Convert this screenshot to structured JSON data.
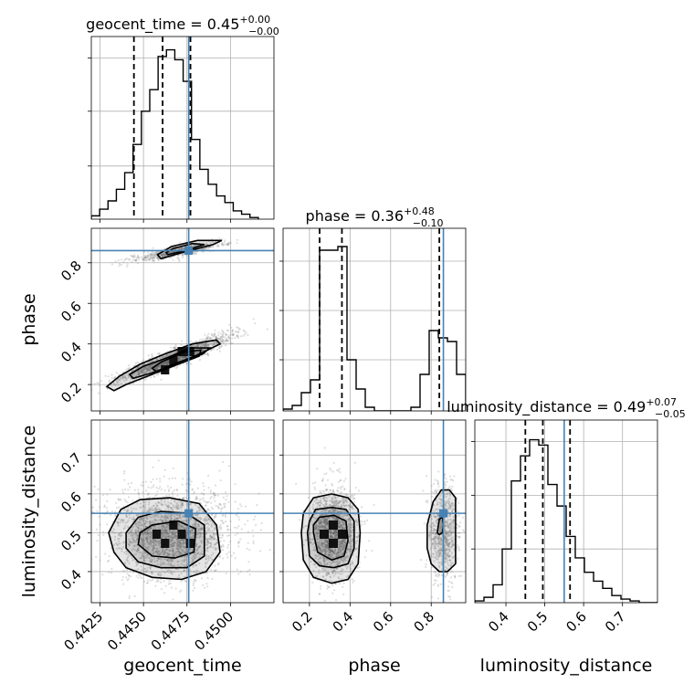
{
  "chart_data": {
    "type": "corner",
    "parameters": [
      "geocent_time",
      "phase",
      "luminosity_distance"
    ],
    "titles": [
      {
        "param": "geocent_time",
        "label": "geocent_time = 0.45",
        "plus": "+0.00",
        "minus": "−0.00"
      },
      {
        "param": "phase",
        "label": "phase = 0.36",
        "plus": "+0.48",
        "minus": "−0.10"
      },
      {
        "param": "luminosity_distance",
        "label": "luminosity_distance = 0.49",
        "plus": "+0.07",
        "minus": "−0.05"
      }
    ],
    "ranges": {
      "geocent_time": [
        0.442,
        0.4525
      ],
      "phase": [
        0.07,
        0.97
      ],
      "luminosity_distance": [
        0.32,
        0.79
      ]
    },
    "ticks": {
      "geocent_time": [
        {
          "value": 0.4425,
          "label": "0.4425"
        },
        {
          "value": 0.445,
          "label": "0.4450"
        },
        {
          "value": 0.4475,
          "label": "0.4475"
        },
        {
          "value": 0.45,
          "label": "0.4500"
        }
      ],
      "phase": [
        {
          "value": 0.2,
          "label": "0.2"
        },
        {
          "value": 0.4,
          "label": "0.4"
        },
        {
          "value": 0.6,
          "label": "0.6"
        },
        {
          "value": 0.8,
          "label": "0.8"
        }
      ],
      "luminosity_distance": [
        {
          "value": 0.4,
          "label": "0.4"
        },
        {
          "value": 0.5,
          "label": "0.5"
        },
        {
          "value": 0.6,
          "label": "0.6"
        },
        {
          "value": 0.7,
          "label": "0.7"
        }
      ]
    },
    "truths": {
      "geocent_time": 0.4476,
      "phase": 0.86,
      "luminosity_distance": 0.55
    },
    "quantiles": {
      "geocent_time": [
        0.44445,
        0.4461,
        0.4477
      ],
      "phase": [
        0.25,
        0.36,
        0.84
      ],
      "luminosity_distance": [
        0.45,
        0.495,
        0.565
      ]
    },
    "histograms": {
      "geocent_time": {
        "edges": [
          0.442,
          0.44248,
          0.44296,
          0.44344,
          0.44392,
          0.4444,
          0.44488,
          0.44536,
          0.44584,
          0.44632,
          0.4468,
          0.44728,
          0.44776,
          0.44824,
          0.44872,
          0.4492,
          0.44968,
          0.45016,
          0.45064,
          0.45112,
          0.4516
        ],
        "counts": [
          2,
          6,
          11,
          18,
          28,
          45,
          65,
          78,
          98,
          102,
          96,
          83,
          48,
          30,
          21,
          14,
          10,
          5,
          3,
          1
        ],
        "ymax": 110,
        "ytick_values": [
          32,
          65,
          97
        ]
      },
      "phase": {
        "edges": [
          0.07,
          0.115,
          0.16,
          0.205,
          0.25,
          0.295,
          0.34,
          0.385,
          0.43,
          0.475,
          0.52,
          0.565,
          0.61,
          0.655,
          0.7,
          0.745,
          0.79,
          0.835,
          0.88,
          0.925,
          0.97
        ],
        "counts": [
          1,
          3,
          10,
          17,
          88,
          88,
          90,
          28,
          12,
          2,
          0,
          0,
          0,
          0,
          2,
          20,
          44,
          40,
          38,
          20
        ],
        "ymax": 100,
        "ytick_values": [
          28,
          55,
          82
        ]
      },
      "luminosity_distance": {
        "edges": [
          0.32,
          0.3435,
          0.367,
          0.3905,
          0.414,
          0.4375,
          0.461,
          0.4845,
          0.508,
          0.5315,
          0.555,
          0.5785,
          0.602,
          0.6255,
          0.649,
          0.6725,
          0.696,
          0.7195,
          0.743,
          0.7665,
          0.79
        ],
        "counts": [
          1,
          3,
          10,
          30,
          68,
          82,
          91,
          88,
          66,
          54,
          37,
          25,
          17,
          12,
          8,
          4,
          2,
          1,
          0,
          0
        ],
        "ymax": 102,
        "ytick_values": [
          30,
          60,
          90
        ]
      }
    },
    "posterior_2d": [
      {
        "x": "geocent_time",
        "y": "phase",
        "modes": [
          {
            "mean_x": 0.4467,
            "mean_y": 0.33,
            "sd_x": 0.0016,
            "sd_y": 0.057,
            "corr": 0.93,
            "n": 1700
          },
          {
            "mean_x": 0.447,
            "mean_y": 0.855,
            "sd_x": 0.0013,
            "sd_y": 0.024,
            "corr": 0.85,
            "n": 650
          }
        ],
        "dense_cells": [
          {
            "x0": 0.446,
            "x1": 0.44648,
            "y0": 0.25,
            "y1": 0.295
          },
          {
            "x0": 0.44648,
            "x1": 0.44696,
            "y0": 0.295,
            "y1": 0.34
          },
          {
            "x0": 0.44696,
            "x1": 0.44744,
            "y0": 0.34,
            "y1": 0.385
          },
          {
            "x0": 0.44744,
            "x1": 0.44792,
            "y0": 0.34,
            "y1": 0.385
          }
        ],
        "contours": [
          [
            [
              0.4433,
              0.17
            ],
            [
              0.444,
              0.2
            ],
            [
              0.4455,
              0.25
            ],
            [
              0.4468,
              0.3
            ],
            [
              0.4482,
              0.35
            ],
            [
              0.4494,
              0.4
            ],
            [
              0.4492,
              0.42
            ],
            [
              0.4478,
              0.4
            ],
            [
              0.4462,
              0.35
            ],
            [
              0.4448,
              0.3
            ],
            [
              0.4436,
              0.24
            ],
            [
              0.4429,
              0.19
            ]
          ],
          [
            [
              0.4444,
              0.23
            ],
            [
              0.4456,
              0.26
            ],
            [
              0.447,
              0.31
            ],
            [
              0.4484,
              0.35
            ],
            [
              0.4488,
              0.38
            ],
            [
              0.4477,
              0.38
            ],
            [
              0.4463,
              0.33
            ],
            [
              0.445,
              0.29
            ],
            [
              0.4442,
              0.25
            ]
          ],
          [
            [
              0.4458,
              0.26
            ],
            [
              0.447,
              0.3
            ],
            [
              0.4482,
              0.34
            ],
            [
              0.4483,
              0.37
            ],
            [
              0.4473,
              0.36
            ],
            [
              0.446,
              0.31
            ],
            [
              0.4455,
              0.28
            ]
          ],
          [
            [
              0.446,
              0.82
            ],
            [
              0.4472,
              0.85
            ],
            [
              0.449,
              0.89
            ],
            [
              0.4495,
              0.91
            ],
            [
              0.4481,
              0.91
            ],
            [
              0.4466,
              0.88
            ],
            [
              0.4458,
              0.84
            ]
          ],
          [
            [
              0.4464,
              0.84
            ],
            [
              0.4474,
              0.86
            ],
            [
              0.4485,
              0.89
            ],
            [
              0.4478,
              0.895
            ],
            [
              0.4467,
              0.87
            ],
            [
              0.4463,
              0.85
            ]
          ]
        ]
      },
      {
        "x": "geocent_time",
        "y": "luminosity_distance",
        "modes": [
          {
            "mean_x": 0.4466,
            "mean_y": 0.5,
            "sd_x": 0.0017,
            "sd_y": 0.058,
            "corr": 0.0,
            "n": 2200
          }
        ],
        "dense_cells": [
          {
            "x0": 0.44552,
            "x1": 0.446,
            "y0": 0.4845,
            "y1": 0.508
          },
          {
            "x0": 0.446,
            "x1": 0.44648,
            "y0": 0.461,
            "y1": 0.4845
          },
          {
            "x0": 0.44648,
            "x1": 0.44696,
            "y0": 0.508,
            "y1": 0.5315
          },
          {
            "x0": 0.44696,
            "x1": 0.44744,
            "y0": 0.4845,
            "y1": 0.508
          },
          {
            "x0": 0.44744,
            "x1": 0.44792,
            "y0": 0.461,
            "y1": 0.4845
          }
        ],
        "contours": [
          [
            [
              0.4433,
              0.45
            ],
            [
              0.444,
              0.41
            ],
            [
              0.4455,
              0.385
            ],
            [
              0.4472,
              0.38
            ],
            [
              0.4486,
              0.4
            ],
            [
              0.4494,
              0.45
            ],
            [
              0.4492,
              0.52
            ],
            [
              0.4482,
              0.575
            ],
            [
              0.4465,
              0.59
            ],
            [
              0.4448,
              0.585
            ],
            [
              0.4437,
              0.56
            ],
            [
              0.443,
              0.5
            ]
          ],
          [
            [
              0.444,
              0.46
            ],
            [
              0.4447,
              0.425
            ],
            [
              0.446,
              0.41
            ],
            [
              0.4475,
              0.41
            ],
            [
              0.4485,
              0.44
            ],
            [
              0.4485,
              0.52
            ],
            [
              0.4475,
              0.55
            ],
            [
              0.446,
              0.555
            ],
            [
              0.4447,
              0.54
            ],
            [
              0.444,
              0.5
            ]
          ],
          [
            [
              0.4447,
              0.47
            ],
            [
              0.4455,
              0.44
            ],
            [
              0.4468,
              0.435
            ],
            [
              0.4479,
              0.45
            ],
            [
              0.448,
              0.51
            ],
            [
              0.447,
              0.53
            ],
            [
              0.4455,
              0.52
            ],
            [
              0.4448,
              0.5
            ]
          ]
        ]
      },
      {
        "x": "phase",
        "y": "luminosity_distance",
        "modes": [
          {
            "mean_x": 0.32,
            "mean_y": 0.5,
            "sd_x": 0.055,
            "sd_y": 0.058,
            "corr": 0.0,
            "n": 1700
          },
          {
            "mean_x": 0.86,
            "mean_y": 0.5,
            "sd_x": 0.035,
            "sd_y": 0.06,
            "corr": 0.0,
            "n": 800
          }
        ],
        "dense_cells": [
          {
            "x0": 0.25,
            "x1": 0.295,
            "y0": 0.4845,
            "y1": 0.508
          },
          {
            "x0": 0.295,
            "x1": 0.34,
            "y0": 0.461,
            "y1": 0.4845
          },
          {
            "x0": 0.34,
            "x1": 0.385,
            "y0": 0.4845,
            "y1": 0.508
          },
          {
            "x0": 0.295,
            "x1": 0.34,
            "y0": 0.508,
            "y1": 0.5315
          }
        ],
        "contours": [
          [
            [
              0.16,
              0.5
            ],
            [
              0.17,
              0.43
            ],
            [
              0.22,
              0.385
            ],
            [
              0.31,
              0.37
            ],
            [
              0.39,
              0.38
            ],
            [
              0.44,
              0.42
            ],
            [
              0.45,
              0.5
            ],
            [
              0.44,
              0.56
            ],
            [
              0.39,
              0.59
            ],
            [
              0.31,
              0.6
            ],
            [
              0.22,
              0.59
            ],
            [
              0.17,
              0.55
            ]
          ],
          [
            [
              0.19,
              0.5
            ],
            [
              0.2,
              0.44
            ],
            [
              0.25,
              0.415
            ],
            [
              0.32,
              0.41
            ],
            [
              0.39,
              0.42
            ],
            [
              0.42,
              0.46
            ],
            [
              0.42,
              0.53
            ],
            [
              0.38,
              0.56
            ],
            [
              0.31,
              0.565
            ],
            [
              0.23,
              0.56
            ],
            [
              0.2,
              0.53
            ]
          ],
          [
            [
              0.22,
              0.5
            ],
            [
              0.24,
              0.45
            ],
            [
              0.31,
              0.43
            ],
            [
              0.37,
              0.44
            ],
            [
              0.39,
              0.48
            ],
            [
              0.38,
              0.53
            ],
            [
              0.32,
              0.545
            ],
            [
              0.25,
              0.54
            ],
            [
              0.22,
              0.52
            ]
          ],
          [
            [
              0.84,
              0.4
            ],
            [
              0.8,
              0.42
            ],
            [
              0.78,
              0.46
            ],
            [
              0.78,
              0.52
            ],
            [
              0.81,
              0.58
            ],
            [
              0.85,
              0.61
            ],
            [
              0.89,
              0.61
            ],
            [
              0.92,
              0.59
            ],
            [
              0.92,
              0.42
            ],
            [
              0.88,
              0.4
            ]
          ],
          [
            [
              0.83,
              0.5
            ],
            [
              0.84,
              0.535
            ],
            [
              0.855,
              0.54
            ],
            [
              0.86,
              0.52
            ],
            [
              0.855,
              0.5
            ],
            [
              0.84,
              0.495
            ]
          ]
        ]
      }
    ],
    "grid": true,
    "colors": {
      "truth": "#4682b4",
      "line": "#000000",
      "grid": "#b0b0b0",
      "points": "#888888"
    }
  }
}
